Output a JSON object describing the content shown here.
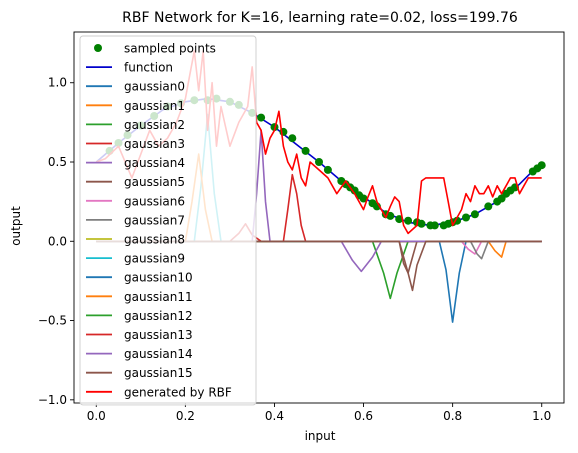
{
  "chart_data": {
    "type": "line",
    "title": "RBF Network for K=16, learning rate=0.02, loss=199.76",
    "xlabel": "input",
    "ylabel": "output",
    "xlim": [
      -0.05,
      1.05
    ],
    "ylim": [
      -1.02,
      1.32
    ],
    "xticks": [
      0.0,
      0.2,
      0.4,
      0.6,
      0.8,
      1.0
    ],
    "xtick_labels": [
      "0.0",
      "0.2",
      "0.4",
      "0.6",
      "0.8",
      "1.0"
    ],
    "yticks": [
      -1.0,
      -0.5,
      0.0,
      0.5,
      1.0
    ],
    "ytick_labels": [
      "−1.0",
      "−0.5",
      "0.0",
      "0.5",
      "1.0"
    ],
    "grid": false,
    "legend_position": "upper-left",
    "sampled_points": {
      "name": "sampled points",
      "color": "#008000",
      "x": [
        0.03,
        0.05,
        0.07,
        0.1,
        0.13,
        0.16,
        0.19,
        0.22,
        0.25,
        0.27,
        0.3,
        0.32,
        0.35,
        0.37,
        0.4,
        0.42,
        0.44,
        0.47,
        0.5,
        0.52,
        0.55,
        0.56,
        0.57,
        0.58,
        0.59,
        0.6,
        0.62,
        0.63,
        0.65,
        0.66,
        0.68,
        0.7,
        0.72,
        0.73,
        0.75,
        0.76,
        0.78,
        0.79,
        0.8,
        0.81,
        0.83,
        0.85,
        0.88,
        0.9,
        0.91,
        0.92,
        0.93,
        0.94,
        0.98,
        0.99,
        1.0
      ],
      "y": [
        0.57,
        0.62,
        0.67,
        0.73,
        0.79,
        0.85,
        0.87,
        0.89,
        0.89,
        0.9,
        0.88,
        0.86,
        0.81,
        0.78,
        0.72,
        0.69,
        0.65,
        0.57,
        0.5,
        0.45,
        0.38,
        0.36,
        0.34,
        0.32,
        0.29,
        0.27,
        0.24,
        0.22,
        0.17,
        0.16,
        0.14,
        0.13,
        0.12,
        0.11,
        0.1,
        0.1,
        0.1,
        0.11,
        0.12,
        0.13,
        0.15,
        0.17,
        0.22,
        0.25,
        0.27,
        0.3,
        0.32,
        0.34,
        0.44,
        0.46,
        0.48
      ]
    },
    "function_curve": {
      "name": "function",
      "color": "#0000cc",
      "x": [
        0.0,
        0.05,
        0.1,
        0.15,
        0.2,
        0.25,
        0.3,
        0.35,
        0.4,
        0.45,
        0.5,
        0.55,
        0.6,
        0.65,
        0.7,
        0.75,
        0.8,
        0.85,
        0.9,
        0.95,
        1.0
      ],
      "y": [
        0.5,
        0.62,
        0.73,
        0.83,
        0.88,
        0.9,
        0.88,
        0.81,
        0.72,
        0.61,
        0.5,
        0.38,
        0.28,
        0.18,
        0.12,
        0.1,
        0.12,
        0.17,
        0.25,
        0.36,
        0.5
      ]
    },
    "gaussians": [
      {
        "name": "gaussian0",
        "color": "#1f77b4",
        "x": [
          0.77,
          0.785,
          0.8,
          0.815,
          0.83
        ],
        "y": [
          0.0,
          -0.18,
          -0.51,
          -0.2,
          0.0
        ]
      },
      {
        "name": "gaussian1",
        "color": "#ff7f0e",
        "x": [
          0.88,
          0.895,
          0.91,
          0.92
        ],
        "y": [
          0.0,
          -0.06,
          -0.1,
          0.0
        ]
      },
      {
        "name": "gaussian2",
        "color": "#2ca02c",
        "x": [
          0.62,
          0.645,
          0.66,
          0.675,
          0.7
        ],
        "y": [
          0.0,
          -0.2,
          -0.36,
          -0.2,
          0.0
        ]
      },
      {
        "name": "gaussian3",
        "color": "#d62728",
        "x": [
          0.3,
          0.32,
          0.335,
          0.35,
          0.37
        ],
        "y": [
          0.0,
          0.05,
          0.11,
          0.04,
          0.0
        ]
      },
      {
        "name": "gaussian4",
        "color": "#9467bd",
        "x": [
          0.55,
          0.575,
          0.595,
          0.62,
          0.64
        ],
        "y": [
          0.0,
          -0.12,
          -0.19,
          -0.1,
          0.0
        ]
      },
      {
        "name": "gaussian5",
        "color": "#8c564b",
        "x": [
          0.68,
          0.69,
          0.7,
          0.71,
          0.72
        ],
        "y": [
          0.0,
          -0.14,
          -0.2,
          -0.1,
          0.0
        ]
      },
      {
        "name": "gaussian6",
        "color": "#e377c2",
        "x": [
          0.82,
          0.835,
          0.85,
          0.865
        ],
        "y": [
          0.0,
          -0.05,
          -0.08,
          0.0
        ]
      },
      {
        "name": "gaussian7",
        "color": "#7f7f7f",
        "x": [
          0.84,
          0.855,
          0.865,
          0.88
        ],
        "y": [
          0.0,
          -0.08,
          -0.11,
          0.0
        ]
      },
      {
        "name": "gaussian8",
        "color": "#bcbd22",
        "x": [
          0.0,
          1.0
        ],
        "y": [
          0.0,
          0.0
        ]
      },
      {
        "name": "gaussian9",
        "color": "#17becf",
        "x": [
          0.22,
          0.235,
          0.25,
          0.265,
          0.28
        ],
        "y": [
          0.0,
          0.35,
          0.8,
          0.3,
          0.0
        ]
      },
      {
        "name": "gaussian10",
        "color": "#1f77b4",
        "x": [
          0.0,
          1.0
        ],
        "y": [
          0.0,
          0.0
        ]
      },
      {
        "name": "gaussian11",
        "color": "#ff7f0e",
        "x": [
          0.2,
          0.215,
          0.23,
          0.245,
          0.26
        ],
        "y": [
          0.0,
          0.25,
          0.55,
          0.2,
          0.0
        ]
      },
      {
        "name": "gaussian12",
        "color": "#2ca02c",
        "x": [
          0.0,
          1.0
        ],
        "y": [
          0.0,
          0.0
        ]
      },
      {
        "name": "gaussian13",
        "color": "#d62728",
        "x": [
          0.42,
          0.43,
          0.44,
          0.45,
          0.46,
          0.47
        ],
        "y": [
          0.0,
          0.2,
          0.42,
          0.3,
          0.1,
          0.0
        ]
      },
      {
        "name": "gaussian14",
        "color": "#9467bd",
        "x": [
          0.35,
          0.36,
          0.37,
          0.38,
          0.39
        ],
        "y": [
          0.0,
          0.3,
          0.7,
          0.25,
          0.0
        ]
      },
      {
        "name": "gaussian15",
        "color": "#8c564b",
        "x": [
          0.68,
          0.7,
          0.71,
          0.72,
          0.74
        ],
        "y": [
          0.0,
          -0.2,
          -0.31,
          -0.15,
          0.0
        ]
      }
    ],
    "rbf_output": {
      "name": "generated by RBF",
      "color": "#ff0000",
      "x": [
        0.0,
        0.02,
        0.05,
        0.08,
        0.1,
        0.12,
        0.14,
        0.16,
        0.18,
        0.2,
        0.21,
        0.22,
        0.23,
        0.24,
        0.25,
        0.26,
        0.27,
        0.28,
        0.3,
        0.32,
        0.34,
        0.35,
        0.36,
        0.37,
        0.38,
        0.39,
        0.4,
        0.41,
        0.42,
        0.43,
        0.44,
        0.45,
        0.46,
        0.47,
        0.48,
        0.5,
        0.52,
        0.54,
        0.56,
        0.58,
        0.6,
        0.61,
        0.62,
        0.63,
        0.64,
        0.65,
        0.66,
        0.67,
        0.68,
        0.69,
        0.7,
        0.72,
        0.73,
        0.74,
        0.75,
        0.76,
        0.77,
        0.78,
        0.79,
        0.8,
        0.81,
        0.82,
        0.83,
        0.84,
        0.85,
        0.86,
        0.87,
        0.88,
        0.89,
        0.9,
        0.91,
        0.92,
        0.93,
        0.94,
        0.95,
        0.96,
        0.97,
        0.98,
        1.0
      ],
      "y": [
        0.5,
        0.52,
        0.6,
        0.4,
        0.55,
        0.7,
        0.6,
        0.65,
        0.75,
        0.9,
        1.05,
        1.2,
        0.95,
        1.2,
        0.7,
        1.0,
        0.6,
        0.85,
        0.6,
        0.75,
        0.85,
        1.1,
        0.75,
        0.7,
        0.55,
        0.65,
        0.7,
        0.82,
        0.6,
        0.5,
        0.45,
        0.55,
        0.4,
        0.35,
        0.5,
        0.45,
        0.4,
        0.3,
        0.38,
        0.3,
        0.2,
        0.28,
        0.35,
        0.25,
        0.2,
        0.15,
        0.22,
        0.28,
        0.25,
        0.1,
        0.05,
        0.1,
        0.38,
        0.4,
        0.4,
        0.4,
        0.4,
        0.4,
        0.25,
        0.1,
        0.15,
        0.2,
        0.3,
        0.25,
        0.35,
        0.3,
        0.3,
        0.35,
        0.28,
        0.35,
        0.3,
        0.35,
        0.4,
        0.4,
        0.3,
        0.35,
        0.4,
        0.4,
        0.4
      ]
    }
  }
}
